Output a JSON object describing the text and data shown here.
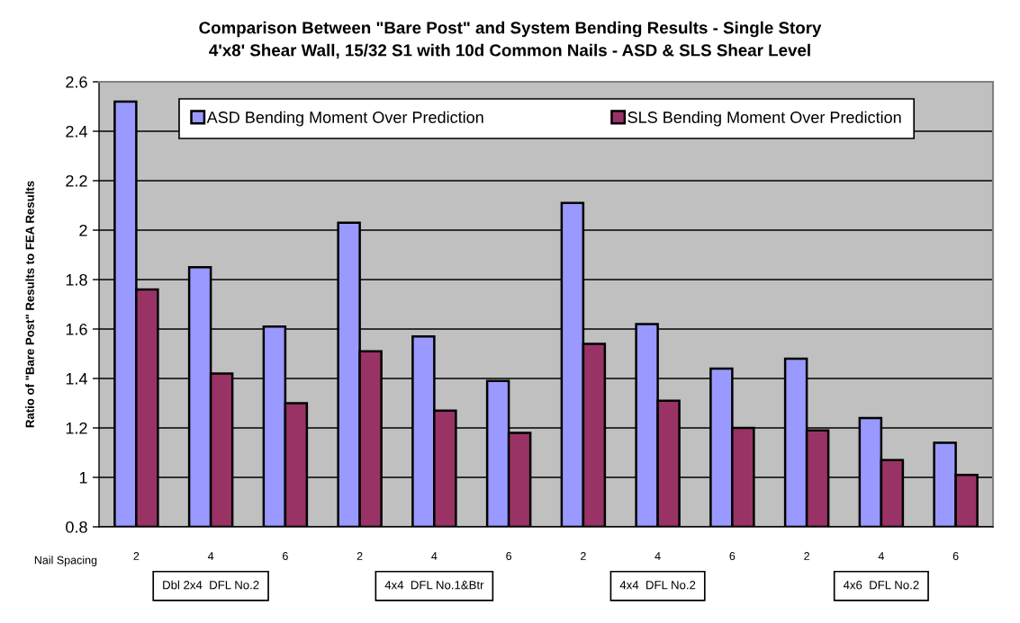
{
  "chart_data": {
    "type": "bar",
    "title": "Comparison Between \"Bare Post\" and System Bending Results - Single Story\n4'x8' Shear Wall, 15/32 S1 with 10d Common Nails - ASD & SLS Shear Level",
    "xlabel": "Nail Spacing",
    "ylabel": "Ratio of \"Bare Post\" Results to FEA Results",
    "categories": [
      "2",
      "4",
      "6",
      "2",
      "4",
      "6",
      "2",
      "4",
      "6",
      "2",
      "4",
      "6"
    ],
    "series": [
      {
        "name": "ASD Bending Moment Over Prediction",
        "color": "#9999ff",
        "values": [
          2.52,
          1.85,
          1.61,
          2.03,
          1.57,
          1.39,
          2.11,
          1.62,
          1.44,
          1.48,
          1.24,
          1.14
        ]
      },
      {
        "name": "SLS Bending Moment Over Prediction",
        "color": "#993366",
        "values": [
          1.76,
          1.42,
          1.3,
          1.51,
          1.27,
          1.18,
          1.54,
          1.31,
          1.2,
          1.19,
          1.07,
          1.01
        ]
      }
    ],
    "ylim": [
      0.8,
      2.6
    ],
    "yticks": [
      0.8,
      1,
      1.2,
      1.4,
      1.6,
      1.8,
      2,
      2.2,
      2.4,
      2.6
    ],
    "grid": "y",
    "legend": "top",
    "annotations": [
      "Dbl 2x4  DFL No.2",
      "4x4  DFL No.1&Btr",
      "4x4  DFL No.2",
      "4x6  DFL No.2"
    ]
  }
}
